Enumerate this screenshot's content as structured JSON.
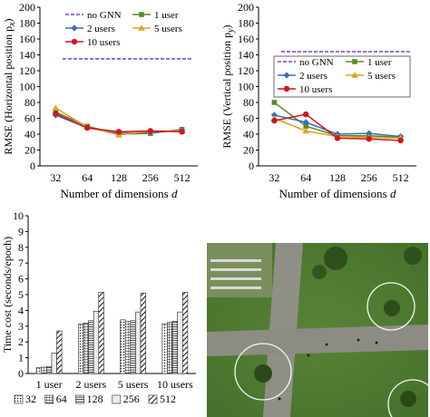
{
  "chart_data": [
    {
      "type": "line",
      "ylabel": "RMSE (Horizontal position p",
      "ylabel_sub": "x",
      "xlabel": "Number of dimensions ",
      "xlabel_var": "d",
      "x": [
        "32",
        "64",
        "128",
        "256",
        "512"
      ],
      "yticks": [
        "0",
        "20",
        "40",
        "60",
        "80",
        "100",
        "120",
        "140",
        "160",
        "180",
        "200"
      ],
      "ylim": [
        0,
        200
      ],
      "baseline": {
        "name": "no GNN",
        "value": 135,
        "color": "#7b3fd1"
      },
      "series": [
        {
          "name": "1 user",
          "color": "#5a8a2c",
          "marker": "square",
          "values": [
            68,
            50,
            40,
            41,
            46
          ]
        },
        {
          "name": "2 users",
          "color": "#3b6dba",
          "marker": "diamond",
          "values": [
            64,
            48,
            41,
            42,
            45
          ]
        },
        {
          "name": "5 users",
          "color": "#d9a520",
          "marker": "triangle",
          "values": [
            73,
            49,
            39,
            44,
            44
          ]
        },
        {
          "name": "10 users",
          "color": "#d0161f",
          "marker": "circle",
          "values": [
            66,
            48,
            43,
            44,
            43
          ]
        }
      ],
      "legend_layout": [
        [
          "no GNN",
          "1 user"
        ],
        [
          "2 users",
          "5 users"
        ],
        [
          "10 users"
        ]
      ]
    },
    {
      "type": "line",
      "ylabel": "RMSE (Vertical position p",
      "ylabel_sub": "y",
      "xlabel": "Number of dimensions ",
      "xlabel_var": "d",
      "x": [
        "32",
        "64",
        "128",
        "256",
        "512"
      ],
      "yticks": [
        "0",
        "20",
        "40",
        "60",
        "80",
        "100",
        "120",
        "140",
        "160",
        "180",
        "200"
      ],
      "ylim": [
        0,
        200
      ],
      "baseline": {
        "name": "no GNN",
        "value": 144,
        "color": "#7b3fd1"
      },
      "series": [
        {
          "name": "1 user",
          "color": "#5a8a2c",
          "marker": "square",
          "values": [
            80,
            50,
            38,
            38,
            36
          ]
        },
        {
          "name": "2 users",
          "color": "#3b6dba",
          "marker": "diamond",
          "values": [
            64,
            55,
            40,
            41,
            37
          ]
        },
        {
          "name": "5 users",
          "color": "#d9a520",
          "marker": "triangle",
          "values": [
            60,
            44,
            37,
            36,
            35
          ]
        },
        {
          "name": "10 users",
          "color": "#d0161f",
          "marker": "circle",
          "values": [
            57,
            65,
            35,
            34,
            32
          ]
        }
      ],
      "legend_layout": [
        [
          "no GNN",
          "1 user"
        ],
        [
          "2 users",
          "5 users"
        ],
        [
          "10 users"
        ]
      ]
    },
    {
      "type": "bar",
      "ylabel": "Time cost (seconds/epoch)",
      "categories": [
        "1 user",
        "2 users",
        "5 users",
        "10 users"
      ],
      "yticks": [
        "0",
        "1",
        "2",
        "3",
        "4",
        "5",
        "6",
        "7",
        "8",
        "9",
        "10"
      ],
      "ylim": [
        0,
        10
      ],
      "series": [
        {
          "name": "32",
          "pattern": "dots",
          "values": [
            0.37,
            3.15,
            3.4,
            3.15
          ]
        },
        {
          "name": "64",
          "pattern": "grid",
          "values": [
            0.4,
            3.2,
            3.3,
            3.25
          ]
        },
        {
          "name": "128",
          "pattern": "hlines",
          "values": [
            0.45,
            3.35,
            3.35,
            3.3
          ]
        },
        {
          "name": "256",
          "pattern": "light",
          "values": [
            1.3,
            3.95,
            3.9,
            3.9
          ]
        },
        {
          "name": "512",
          "pattern": "diag",
          "values": [
            2.7,
            5.15,
            5.1,
            5.15
          ]
        }
      ]
    }
  ],
  "photo": {
    "description_name": "aerial-campus-photo"
  }
}
